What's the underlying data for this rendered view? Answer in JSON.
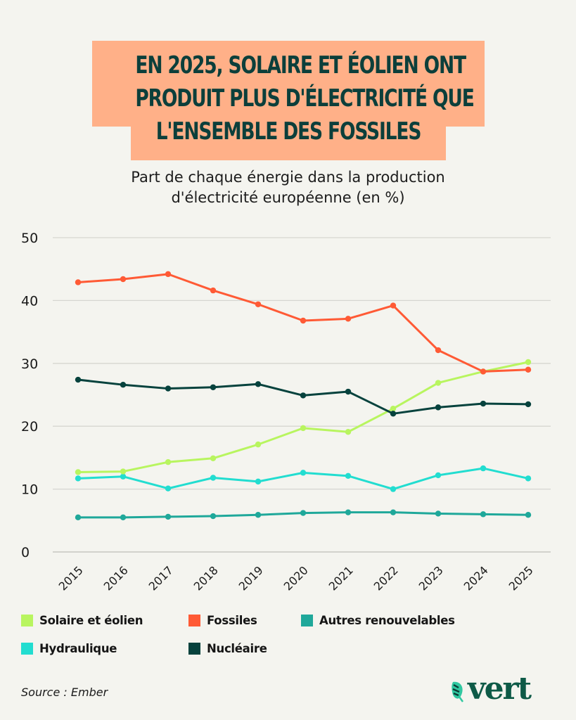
{
  "header": {
    "title_lines": [
      "EN 2025, SOLAIRE ET ÉOLIEN ONT",
      "PRODUIT PLUS D'ÉLECTRICITÉ QUE",
      "L'ENSEMBLE DES FOSSILES"
    ],
    "subtitle_lines": [
      "Part de chaque énergie dans la production",
      "d'électricité européenne (en %)"
    ]
  },
  "footer": {
    "source": "Source : Ember",
    "logo_text": "vert"
  },
  "chart_data": {
    "type": "line",
    "title": "EN 2025, SOLAIRE ET ÉOLIEN ONT PRODUIT PLUS D'ÉLECTRICITÉ QUE L'ENSEMBLE DES FOSSILES",
    "subtitle": "Part de chaque énergie dans la production d'électricité européenne (en %)",
    "xlabel": "",
    "ylabel": "",
    "x": [
      "2015",
      "2016",
      "2017",
      "2018",
      "2019",
      "2020",
      "2021",
      "2022",
      "2023",
      "2024",
      "2025"
    ],
    "ylim": [
      0,
      50
    ],
    "yticks": [
      "0",
      "10",
      "20",
      "30",
      "40",
      "50"
    ],
    "grid": true,
    "legend_position": "bottom",
    "series": [
      {
        "name": "Solaire et éolien",
        "color": "#b8f55f",
        "values": [
          12.7,
          12.8,
          14.3,
          14.9,
          17.1,
          19.7,
          19.1,
          22.8,
          26.9,
          28.7,
          30.2
        ]
      },
      {
        "name": "Fossiles",
        "color": "#ff5a35",
        "values": [
          42.9,
          43.4,
          44.2,
          41.6,
          39.4,
          36.8,
          37.1,
          39.2,
          32.1,
          28.7,
          29.0
        ]
      },
      {
        "name": "Autres renouvelables",
        "color": "#1fa89a",
        "values": [
          5.5,
          5.5,
          5.6,
          5.7,
          5.9,
          6.2,
          6.3,
          6.3,
          6.1,
          6.0,
          5.9
        ]
      },
      {
        "name": "Hydraulique",
        "color": "#22ddd0",
        "values": [
          11.7,
          12.0,
          10.1,
          11.8,
          11.2,
          12.6,
          12.1,
          10.0,
          12.2,
          13.3,
          11.7
        ]
      },
      {
        "name": "Nucléaire",
        "color": "#06423d",
        "values": [
          27.4,
          26.6,
          26.0,
          26.2,
          26.7,
          24.9,
          25.5,
          22.0,
          23.0,
          23.6,
          23.5
        ]
      }
    ]
  }
}
